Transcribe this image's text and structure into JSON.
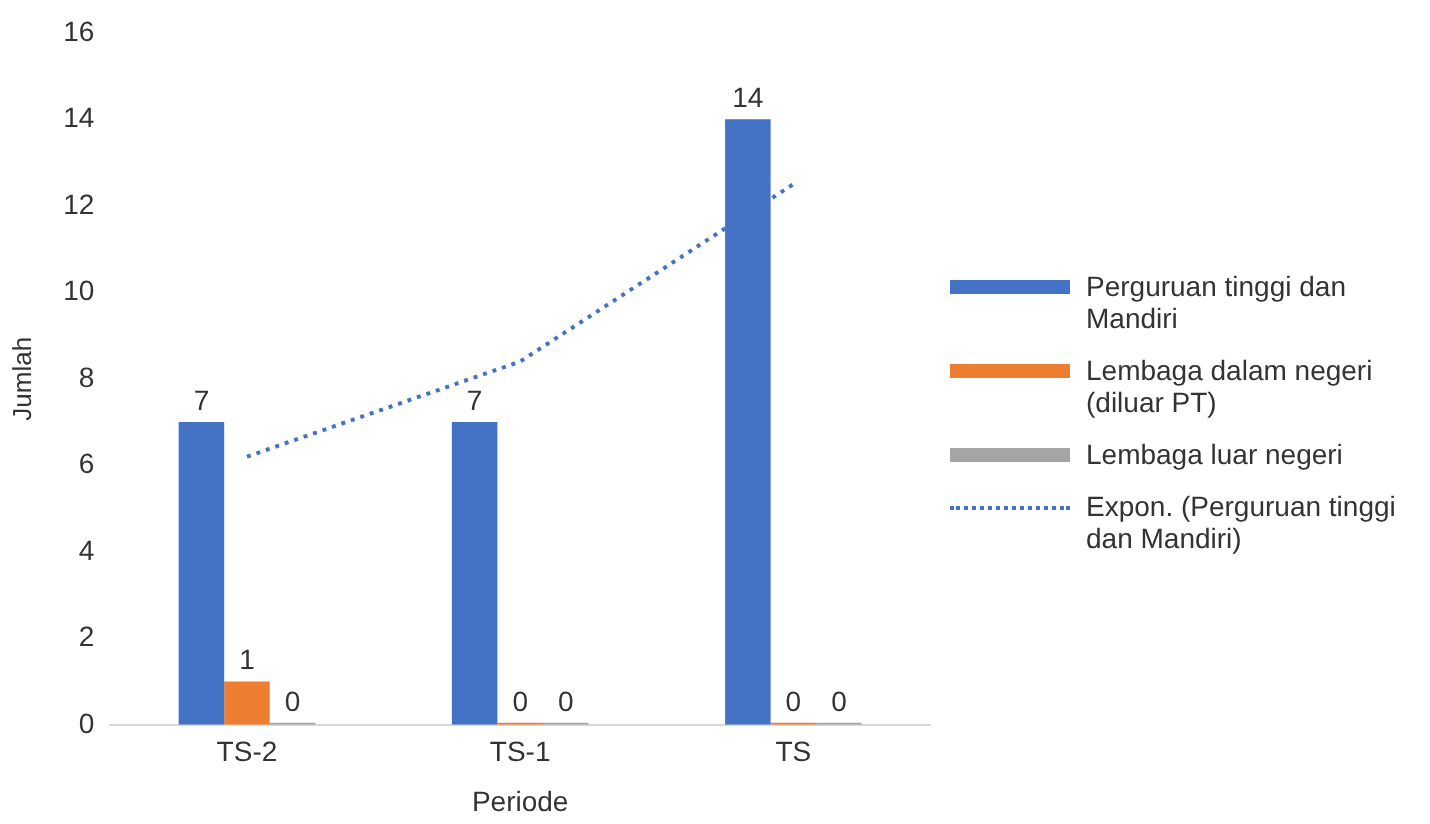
{
  "chart_data": {
    "type": "bar",
    "xlabel": "Periode",
    "ylabel": "Jumlah",
    "categories": [
      "TS-2",
      "TS-1",
      "TS"
    ],
    "series": [
      {
        "name": "Perguruan tinggi dan Mandiri",
        "color": "#4472c4",
        "values": [
          7,
          7,
          14
        ],
        "value_labels": [
          "7",
          "7",
          "14"
        ]
      },
      {
        "name": "Lembaga dalam negeri (diluar PT)",
        "color": "#ed7d31",
        "values": [
          1,
          0,
          0
        ],
        "value_labels": [
          "1",
          "0",
          "0"
        ]
      },
      {
        "name": "Lembaga luar negeri",
        "color": "#a5a5a5",
        "values": [
          0,
          0,
          0
        ],
        "value_labels": [
          "0",
          "0",
          "0"
        ]
      },
      {
        "name": "Expon. (Perguruan tinggi dan Mandiri)",
        "type": "line",
        "color": "#4472c4",
        "line_style": "dotted",
        "marker": "none",
        "values": [
          6.2,
          8.4,
          12.5
        ]
      }
    ],
    "ylim": [
      0,
      16
    ],
    "yticks": [
      0,
      2,
      4,
      6,
      8,
      10,
      12,
      14,
      16
    ],
    "grid": false,
    "legend": "right"
  }
}
